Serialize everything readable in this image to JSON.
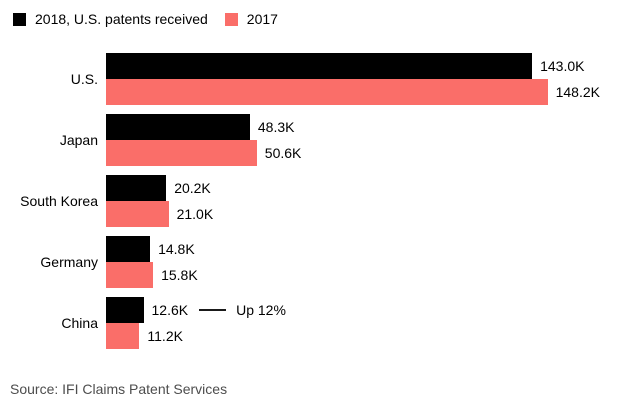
{
  "source": "Source: IFI Claims Patent Services",
  "colors": {
    "series_2018": "#000000",
    "series_2017": "#FA6E69",
    "annotation_line": "#1a1a1a",
    "source_text": "#4d4d4d",
    "background": "#ffffff"
  },
  "chart_data": {
    "type": "bar",
    "orientation": "horizontal",
    "categories": [
      "U.S.",
      "Japan",
      "South Korea",
      "Germany",
      "China"
    ],
    "series": [
      {
        "name": "2018, U.S. patents received",
        "color": "#000000",
        "values": [
          143.0,
          48.3,
          20.2,
          14.8,
          12.6
        ],
        "value_labels": [
          "143.0K",
          "48.3K",
          "20.2K",
          "14.8K",
          "12.6K"
        ]
      },
      {
        "name": "2017",
        "color": "#FA6E69",
        "values": [
          148.2,
          50.6,
          21.0,
          15.8,
          11.2
        ],
        "value_labels": [
          "148.2K",
          "50.6K",
          "21.0K",
          "15.8K",
          "11.2K"
        ]
      }
    ],
    "unit": "K",
    "value_axis_range": [
      0,
      148.2
    ],
    "grid": false,
    "legend_position": "top-left",
    "legend": [
      {
        "label": "2018, U.S. patents received",
        "color": "#000000"
      },
      {
        "label": "2017",
        "color": "#FA6E69"
      }
    ],
    "annotation": {
      "category": "China",
      "series": "2018, U.S. patents received",
      "text": "Up 12%"
    }
  }
}
